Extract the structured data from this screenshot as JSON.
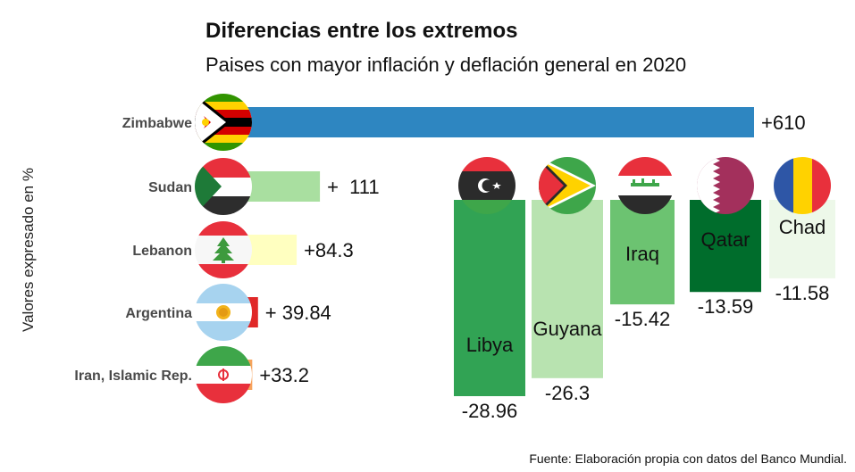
{
  "chart_data": [
    {
      "type": "bar",
      "orientation": "horizontal",
      "title": "Diferencias entre los extremos",
      "subtitle": "Paises con mayor inflación y deflación general en 2020",
      "ylabel": "Valores expresado en %",
      "categories": [
        "Zimbabwe",
        "Sudan",
        "Lebanon",
        "Argentina",
        "Iran, Islamic Rep."
      ],
      "values": [
        610,
        111,
        84.3,
        39.84,
        33.2
      ],
      "value_labels": [
        "+610",
        "+  111",
        "+84.3",
        "+ 39.84",
        "+33.2"
      ],
      "colors": [
        "#2e86c1",
        "#a9dfa0",
        "#ffffc0",
        "#e02828",
        "#f7a35c"
      ],
      "icons": [
        "zimbabwe-flag-icon",
        "sudan-flag-icon",
        "lebanon-flag-icon",
        "argentina-flag-icon",
        "iran-flag-icon"
      ]
    },
    {
      "type": "bar",
      "orientation": "vertical",
      "categories": [
        "Libya",
        "Guyana",
        "Iraq",
        "Qatar",
        "Chad"
      ],
      "values": [
        -28.96,
        -26.3,
        -15.42,
        -13.59,
        -11.58
      ],
      "value_labels": [
        "-28.96",
        "-26.3",
        "-15.42",
        "-13.59",
        "-11.58"
      ],
      "colors": [
        "#31a354",
        "#b8e3b0",
        "#6cc371",
        "#006d2c",
        "#edf8e9"
      ],
      "icons": [
        "libya-flag-icon",
        "guyana-flag-icon",
        "iraq-flag-icon",
        "qatar-flag-icon",
        "chad-flag-icon"
      ]
    }
  ],
  "source": "Fuente: Elaboración propia con datos del Banco Mundial."
}
